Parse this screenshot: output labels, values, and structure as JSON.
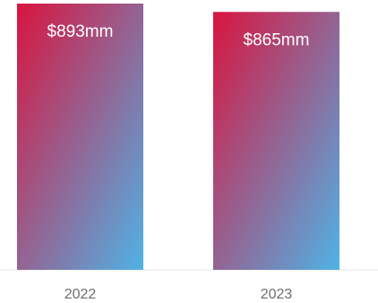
{
  "chart_data": {
    "type": "bar",
    "categories": [
      "2022",
      "2023"
    ],
    "values": [
      893,
      865
    ],
    "data_labels": [
      "$893mm",
      "$865mm"
    ],
    "unit": "$mm",
    "title": "",
    "xlabel": "",
    "ylabel": "",
    "grid": false,
    "legend": "none",
    "colors": {
      "bar_gradient_start": "#d9143f",
      "bar_gradient_end": "#4fb3e6",
      "baseline": "#e6e6e6",
      "tick_text": "#6e6e6e",
      "label_text": "#ffffff"
    }
  }
}
